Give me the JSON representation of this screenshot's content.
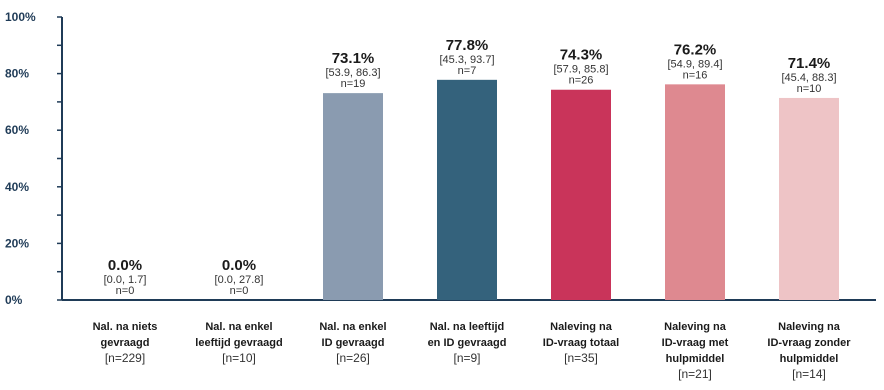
{
  "chart_data": {
    "type": "bar",
    "ylim": [
      0,
      100
    ],
    "yticks": [
      0,
      20,
      40,
      60,
      80,
      100
    ],
    "ytick_labels": [
      "0%",
      "20%",
      "40%",
      "60%",
      "80%",
      "100%"
    ],
    "grid": false,
    "bars": [
      {
        "label_lines": [
          "Nal. na niets",
          "gevraagd"
        ],
        "n_label": "[n=229]",
        "value": 0.0,
        "value_label": "0.0%",
        "ci": "[0.0, 1.7]",
        "n": "n=0",
        "color": "#ffffff"
      },
      {
        "label_lines": [
          "Nal. na enkel",
          "leeftijd gevraagd"
        ],
        "n_label": "[n=10]",
        "value": 0.0,
        "value_label": "0.0%",
        "ci": "[0.0, 27.8]",
        "n": "n=0",
        "color": "#ffffff"
      },
      {
        "label_lines": [
          "Nal. na enkel",
          "ID gevraagd"
        ],
        "n_label": "[n=26]",
        "value": 73.1,
        "value_label": "73.1%",
        "ci": "[53.9, 86.3]",
        "n": "n=19",
        "color": "#8a9bb0"
      },
      {
        "label_lines": [
          "Nal. na leeftijd",
          "en ID gevraagd"
        ],
        "n_label": "[n=9]",
        "value": 77.8,
        "value_label": "77.8%",
        "ci": "[45.3, 93.7]",
        "n": "n=7",
        "color": "#34627c"
      },
      {
        "label_lines": [
          "Naleving na",
          "ID-vraag totaal"
        ],
        "n_label": "[n=35]",
        "value": 74.3,
        "value_label": "74.3%",
        "ci": "[57.9, 85.8]",
        "n": "n=26",
        "color": "#c9345a"
      },
      {
        "label_lines": [
          "Naleving na",
          "ID-vraag met",
          "hulpmiddel"
        ],
        "n_label": "[n=21]",
        "value": 76.2,
        "value_label": "76.2%",
        "ci": "[54.9, 89.4]",
        "n": "n=16",
        "color": "#de8990"
      },
      {
        "label_lines": [
          "Naleving na",
          "ID-vraag zonder",
          "hulpmiddel"
        ],
        "n_label": "[n=14]",
        "value": 71.4,
        "value_label": "71.4%",
        "ci": "[45.4, 88.3]",
        "n": "n=10",
        "color": "#eec4c6"
      }
    ],
    "colors": {
      "axis": "#1f3b57"
    }
  }
}
